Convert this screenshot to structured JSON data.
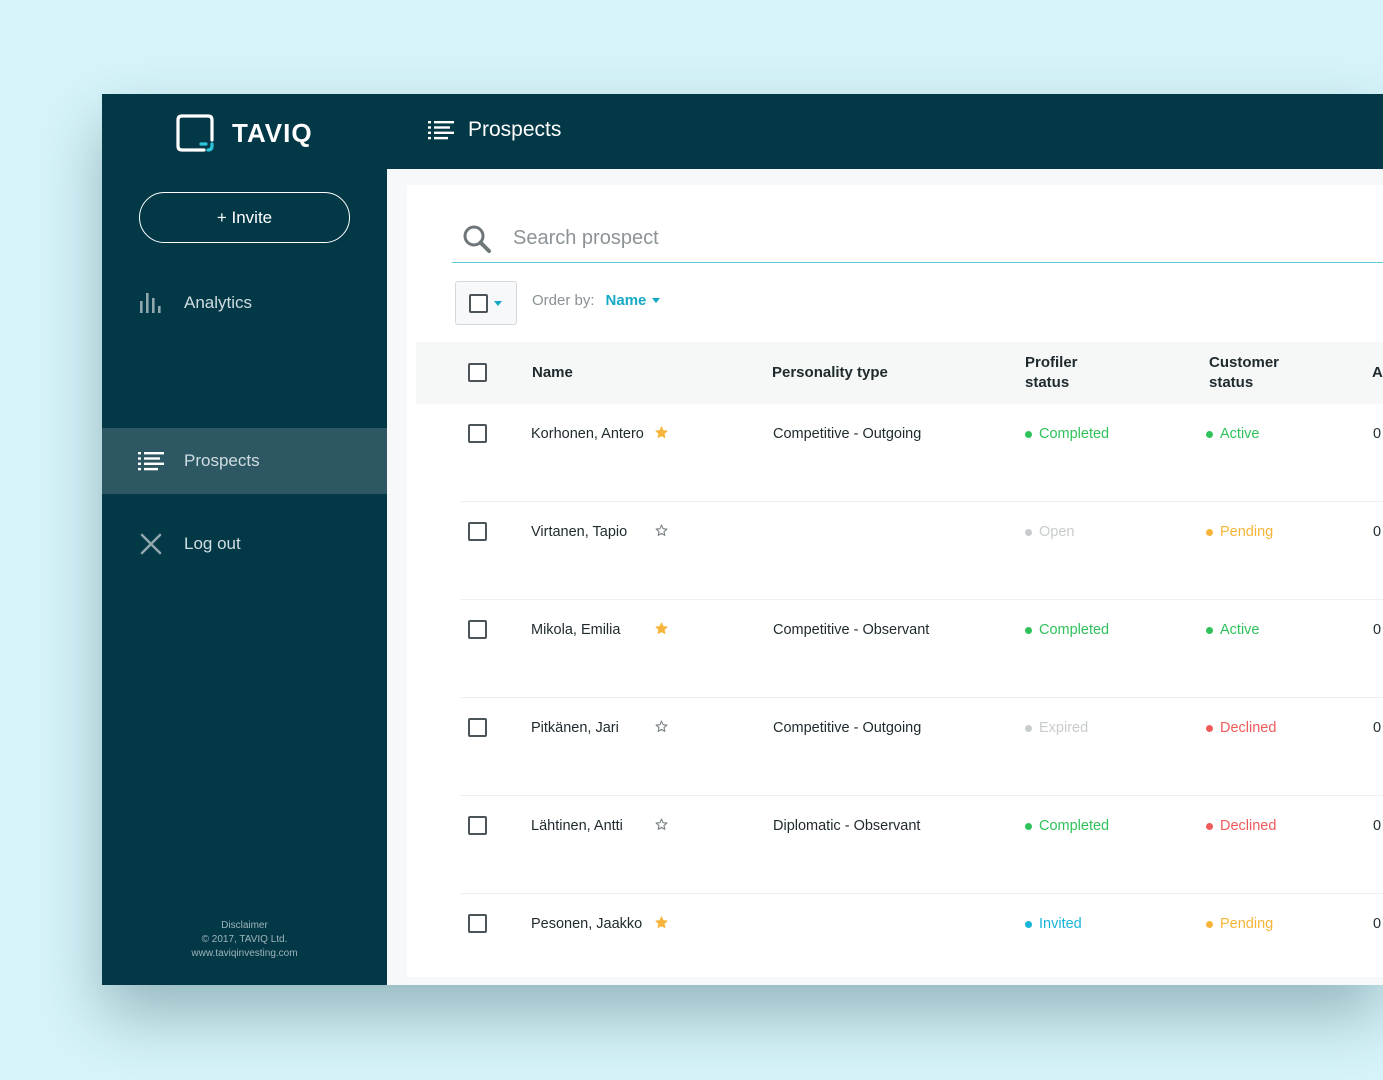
{
  "app": {
    "brand": "TAVIQ",
    "page_title": "Prospects"
  },
  "colors": {
    "primary_dark": "#033846",
    "sidebar_active": "#2d5863",
    "accent": "#17a9c4",
    "green": "#2fc25b",
    "orange": "#f7b43a",
    "red": "#f05a5a",
    "blue": "#19b5d9",
    "gray": "#c8cccd"
  },
  "sidebar": {
    "invite_label": "+ Invite",
    "items": [
      {
        "label": "Analytics",
        "icon": "bar-chart-icon"
      },
      {
        "label": "Prospects",
        "icon": "list-icon"
      },
      {
        "label": "Log out",
        "icon": "close-icon"
      }
    ],
    "footer": {
      "disclaimer": "Disclaimer",
      "copyright": "© 2017, TAVIQ Ltd.",
      "website": "www.taviqinvesting.com"
    }
  },
  "search": {
    "placeholder": "Search prospect",
    "value": ""
  },
  "toolbar": {
    "order_by_label": "Order by:",
    "order_by_value": "Name"
  },
  "table": {
    "columns": {
      "name": "Name",
      "personality": "Personality type",
      "profiler_1": "Profiler",
      "profiler_2": "status",
      "customer_1": "Customer",
      "customer_2": "status",
      "next": "A"
    },
    "rows": [
      {
        "name": "Korhonen, Antero",
        "starred": true,
        "personality": "Competitive - Outgoing",
        "profiler": "Completed",
        "profiler_color": "green",
        "customer": "Active",
        "customer_color": "green",
        "next": "0"
      },
      {
        "name": "Virtanen, Tapio",
        "starred": false,
        "personality": "",
        "profiler": "Open",
        "profiler_color": "gray",
        "customer": "Pending",
        "customer_color": "orange",
        "next": "0"
      },
      {
        "name": "Mikola, Emilia",
        "starred": true,
        "personality": "Competitive - Observant",
        "profiler": "Completed",
        "profiler_color": "green",
        "customer": "Active",
        "customer_color": "green",
        "next": "0"
      },
      {
        "name": "Pitkänen, Jari",
        "starred": false,
        "personality": "Competitive - Outgoing",
        "profiler": "Expired",
        "profiler_color": "gray",
        "customer": "Declined",
        "customer_color": "red",
        "next": "0"
      },
      {
        "name": "Lähtinen, Antti",
        "starred": false,
        "personality": "Diplomatic - Observant",
        "profiler": "Completed",
        "profiler_color": "green",
        "customer": "Declined",
        "customer_color": "red",
        "next": "0"
      },
      {
        "name": "Pesonen, Jaakko",
        "starred": true,
        "personality": "",
        "profiler": "Invited",
        "profiler_color": "blue",
        "customer": "Pending",
        "customer_color": "orange",
        "next": "0"
      }
    ]
  }
}
